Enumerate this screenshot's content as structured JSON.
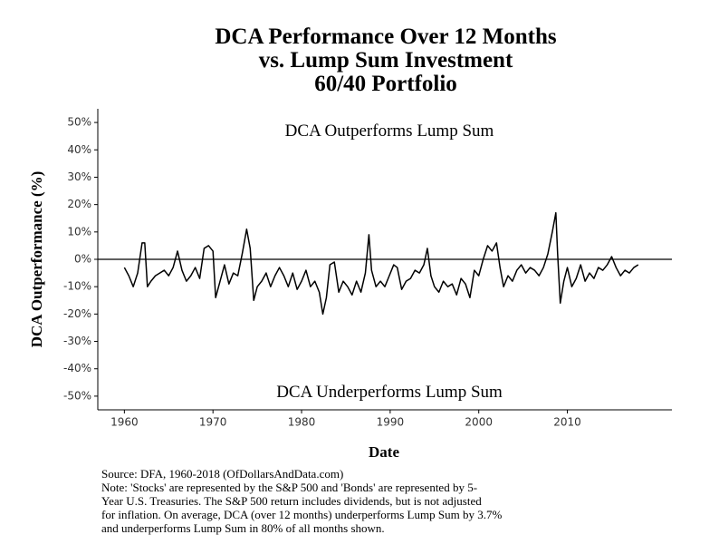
{
  "chart_data": {
    "type": "line",
    "title": [
      "DCA Performance Over 12 Months",
      "vs. Lump Sum Investment",
      "60/40 Portfolio"
    ],
    "annotations": [
      "DCA Outperforms Lump Sum",
      "DCA Underperforms Lump Sum"
    ],
    "x_label": "Date",
    "y_label": "DCA Outperformance (%)",
    "notes": [
      "Source:  DFA, 1960-2018 (OfDollarsAndData.com)",
      "Note: 'Stocks' are represented by the S&P 500 and 'Bonds' are represented by 5-",
      "Year U.S. Treasuries. The S&P 500 return includes dividends, but is not adjusted",
      "for inflation. On average, DCA (over 12 months) underperforms Lump Sum by 3.7%",
      "and underperforms Lump Sum in 80% of all months shown."
    ],
    "x": [
      1960.0,
      1960.5,
      1961.0,
      1961.5,
      1962.0,
      1962.3,
      1962.6,
      1963.0,
      1963.5,
      1964.0,
      1964.5,
      1965.0,
      1965.5,
      1966.0,
      1966.5,
      1967.0,
      1967.5,
      1968.0,
      1968.5,
      1969.0,
      1969.5,
      1970.0,
      1970.3,
      1970.8,
      1971.3,
      1971.8,
      1972.3,
      1972.8,
      1973.3,
      1973.8,
      1974.2,
      1974.6,
      1975.0,
      1975.5,
      1976.0,
      1976.5,
      1977.0,
      1977.5,
      1978.0,
      1978.5,
      1979.0,
      1979.5,
      1980.0,
      1980.5,
      1981.0,
      1981.5,
      1982.0,
      1982.4,
      1982.8,
      1983.2,
      1983.7,
      1984.2,
      1984.7,
      1985.2,
      1985.7,
      1986.2,
      1986.7,
      1987.2,
      1987.6,
      1987.9,
      1988.4,
      1988.9,
      1989.4,
      1989.9,
      1990.4,
      1990.8,
      1991.3,
      1991.8,
      1992.3,
      1992.8,
      1993.3,
      1993.8,
      1994.2,
      1994.6,
      1995.0,
      1995.5,
      1996.0,
      1996.5,
      1997.0,
      1997.5,
      1998.0,
      1998.5,
      1999.0,
      1999.5,
      2000.0,
      2000.5,
      2001.0,
      2001.5,
      2002.0,
      2002.4,
      2002.8,
      2003.3,
      2003.8,
      2004.3,
      2004.8,
      2005.3,
      2005.8,
      2006.3,
      2006.8,
      2007.3,
      2007.8,
      2008.3,
      2008.7,
      2008.9,
      2009.2,
      2009.6,
      2010.0,
      2010.5,
      2011.0,
      2011.5,
      2012.0,
      2012.5,
      2013.0,
      2013.5,
      2014.0,
      2014.5,
      2015.0,
      2015.5,
      2016.0,
      2016.5,
      2017.0,
      2017.5,
      2018.0
    ],
    "series": [
      {
        "color": "#000000",
        "values": [
          -3,
          -6,
          -10,
          -5,
          6,
          6,
          -10,
          -8,
          -6,
          -5,
          -4,
          -6,
          -3,
          3,
          -4,
          -8,
          -6,
          -3,
          -7,
          4,
          5,
          3,
          -14,
          -8,
          -2,
          -9,
          -5,
          -6,
          2,
          11,
          4,
          -15,
          -10,
          -8,
          -5,
          -10,
          -6,
          -3,
          -6,
          -10,
          -5,
          -11,
          -8,
          -4,
          -10,
          -8,
          -12,
          -20,
          -14,
          -2,
          -1,
          -12,
          -8,
          -10,
          -13,
          -8,
          -12,
          -5,
          9,
          -4,
          -10,
          -8,
          -10,
          -6,
          -2,
          -3,
          -11,
          -8,
          -7,
          -4,
          -5,
          -2,
          4,
          -6,
          -10,
          -12,
          -8,
          -10,
          -9,
          -13,
          -7,
          -9,
          -14,
          -4,
          -6,
          0,
          5,
          3,
          6,
          -3,
          -10,
          -6,
          -8,
          -4,
          -2,
          -5,
          -3,
          -4,
          -6,
          -3,
          2,
          10,
          17,
          2,
          -16,
          -8,
          -3,
          -10,
          -7,
          -2,
          -8,
          -5,
          -7,
          -3,
          -4,
          -2,
          1,
          -3,
          -6,
          -4,
          -5,
          -3,
          -2
        ]
      }
    ],
    "reference_line": 0,
    "xlim": [
      1957,
      2021.8
    ],
    "ylim": [
      -55,
      55
    ],
    "xticks": [
      1960,
      1970,
      1980,
      1990,
      2000,
      2010
    ],
    "yticks": [
      {
        "value": 50,
        "label": "50%"
      },
      {
        "value": 40,
        "label": "40%"
      },
      {
        "value": 30,
        "label": "30%"
      },
      {
        "value": 20,
        "label": "20%"
      },
      {
        "value": 10,
        "label": "10%"
      },
      {
        "value": 0,
        "label": "0%"
      },
      {
        "value": -10,
        "label": "-10%"
      },
      {
        "value": -20,
        "label": "-20%"
      },
      {
        "value": -30,
        "label": "-30%"
      },
      {
        "value": -40,
        "label": "-40%"
      },
      {
        "value": -50,
        "label": "-50%"
      }
    ],
    "grid": false
  }
}
